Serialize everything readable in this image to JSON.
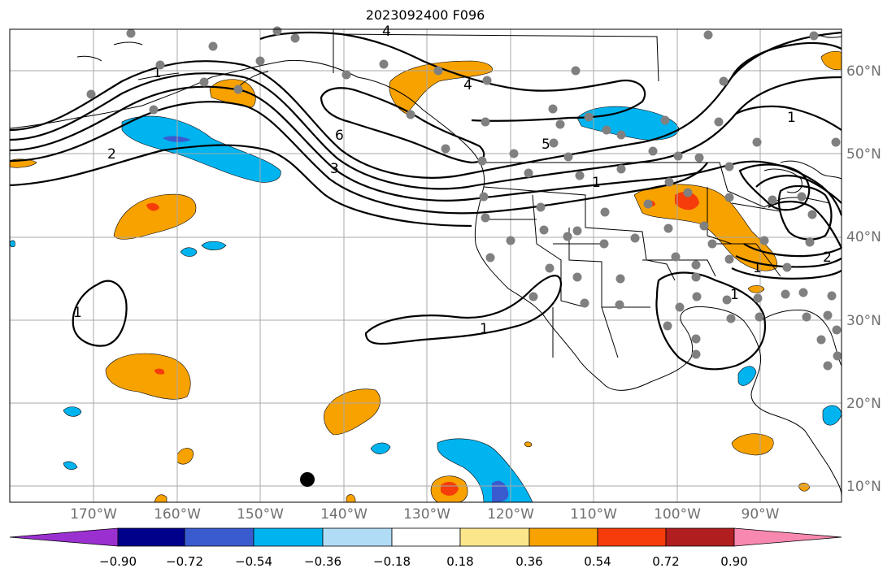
{
  "title": "2023092400 F096",
  "longitude_labels": [
    "170°W",
    "160°W",
    "150°W",
    "140°W",
    "130°W",
    "120°W",
    "110°W",
    "100°W",
    "90°W"
  ],
  "latitude_labels": [
    "60°N",
    "50°N",
    "40°N",
    "30°N",
    "20°N",
    "10°N"
  ],
  "colorbar": {
    "ticks": [
      "−0.90",
      "−0.72",
      "−0.54",
      "−0.36",
      "−0.18",
      "0.18",
      "0.36",
      "0.54",
      "0.72",
      "0.90"
    ],
    "colors": [
      "#9b30d0",
      "#00008b",
      "#3a5bd0",
      "#00b4f0",
      "#b0dcf5",
      "#ffffff",
      "#fbe68c",
      "#f8a200",
      "#f53c0a",
      "#b01e20",
      "#f888b0"
    ]
  },
  "contour_labels": [
    "4",
    "6",
    "4",
    "3",
    "5",
    "2",
    "1",
    "1",
    "1",
    "1",
    "2",
    "1",
    "1",
    "1"
  ],
  "marker": "black-dot"
}
